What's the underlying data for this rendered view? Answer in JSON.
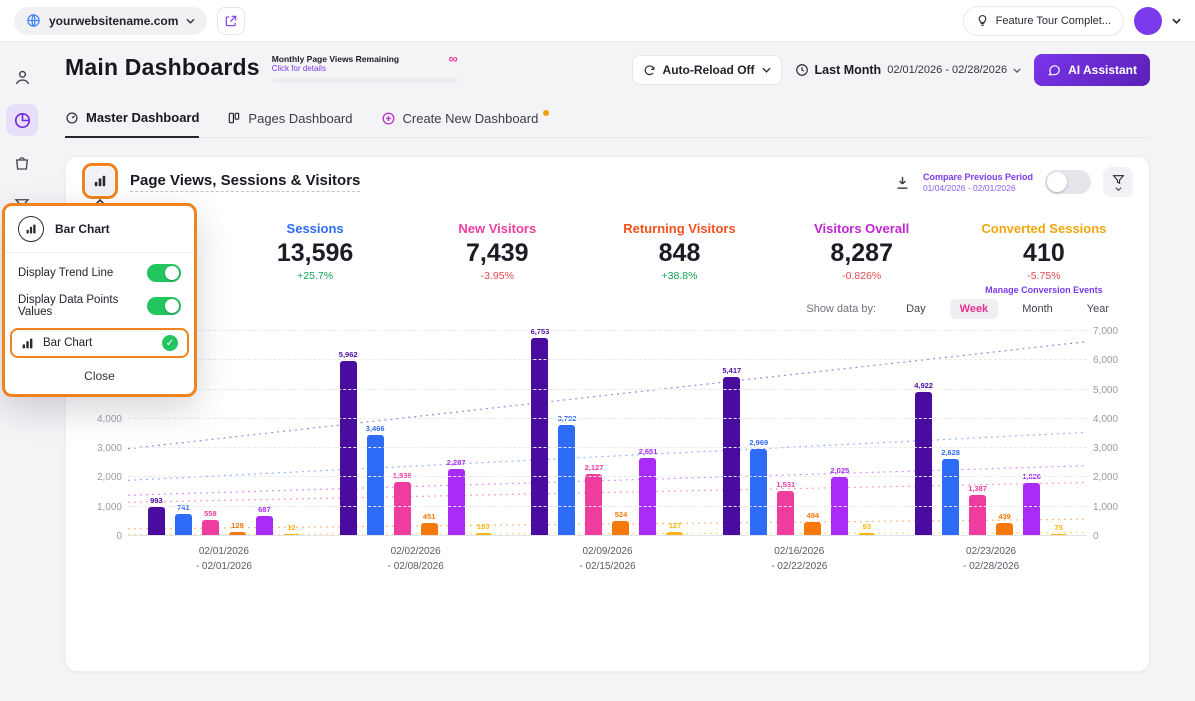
{
  "accent": {
    "purple": "#7C3AED",
    "highlight_orange": "#F0831E",
    "toggle_green": "#22C55E"
  },
  "topbar": {
    "website": "yourwebsitename.com",
    "feature_tour": "Feature Tour Complet..."
  },
  "header": {
    "title": "Main Dashboards",
    "quota_title": "Monthly Page Views Remaining",
    "quota_link": "Click for details",
    "quota_remaining": "∞",
    "auto_reload": "Auto-Reload Off",
    "period_label": "Last Month",
    "period_range": "02/01/2026 - 02/28/2026",
    "ai_assistant": "AI Assistant"
  },
  "tabs": [
    {
      "id": "master",
      "label": "Master Dashboard",
      "active": true,
      "notification_dot": false
    },
    {
      "id": "pages",
      "label": "Pages Dashboard",
      "active": false,
      "notification_dot": false
    },
    {
      "id": "create",
      "label": "Create New Dashboard",
      "active": false,
      "notification_dot": true
    }
  ],
  "sidebar": {
    "items": [
      {
        "name": "visitors",
        "active": false
      },
      {
        "name": "dashboards",
        "active": true
      },
      {
        "name": "ecommerce",
        "active": false
      },
      {
        "name": "behavior",
        "active": false
      },
      {
        "name": "communication",
        "active": false
      }
    ]
  },
  "widget": {
    "title": "Page Views, Sessions & Visitors",
    "compare_title": "Compare Previous Period",
    "compare_range": "01/04/2026 - 02/01/2026",
    "compare_enabled": false,
    "show_data_by_label": "Show data by:",
    "granularity_options": [
      "Day",
      "Week",
      "Month",
      "Year"
    ],
    "granularity_selected": "Week"
  },
  "stats": [
    {
      "label": "Sessions",
      "value": 13596,
      "delta": "+25.7%",
      "trend": "up",
      "color": "#2E6BF6"
    },
    {
      "label": "New Visitors",
      "value": 7439,
      "delta": "-3.95%",
      "trend": "down",
      "color": "#EE3D9F"
    },
    {
      "label": "Returning Visitors",
      "value": 848,
      "delta": "+38.8%",
      "trend": "up",
      "color": "#F4511E"
    },
    {
      "label": "Visitors Overall",
      "value": 8287,
      "delta": "-0.826%",
      "trend": "down",
      "color": "#C026D3"
    },
    {
      "label": "Converted Sessions",
      "value": 410,
      "delta": "-5.75%",
      "trend": "down",
      "color": "#F2A60D",
      "link": "Manage Conversion Events"
    }
  ],
  "chart_data": {
    "type": "bar",
    "title": "Page Views, Sessions & Visitors",
    "categories": [
      {
        "start": "02/01/2026",
        "end": "02/01/2026"
      },
      {
        "start": "02/02/2026",
        "end": "02/08/2026"
      },
      {
        "start": "02/09/2026",
        "end": "02/15/2026"
      },
      {
        "start": "02/16/2026",
        "end": "02/22/2026"
      },
      {
        "start": "02/23/2026",
        "end": "02/28/2026"
      }
    ],
    "series": [
      {
        "name": "Page Views",
        "color": "#4A0C9F",
        "values": [
          993,
          5962,
          6753,
          5417,
          4922
        ]
      },
      {
        "name": "Sessions",
        "color": "#2E6BF6",
        "values": [
          741,
          3466,
          3792,
          2969,
          2628
        ]
      },
      {
        "name": "New Visitors",
        "color": "#EE3D9F",
        "values": [
          558,
          1836,
          2127,
          1531,
          1387
        ]
      },
      {
        "name": "Returning Visitors",
        "color": "#F5790B",
        "values": [
          129,
          451,
          524,
          494,
          439
        ]
      },
      {
        "name": "Visitors Overall",
        "color": "#A92BF5",
        "values": [
          687,
          2287,
          2651,
          2025,
          1826
        ]
      },
      {
        "name": "Converted Sessions",
        "color": "#F6B80C",
        "values": [
          12,
          103,
          127,
          93,
          75
        ]
      }
    ],
    "ylim": [
      0,
      7000
    ],
    "y_tick_step": 1000,
    "grid": true,
    "legend": false,
    "trend_lines": true,
    "data_point_labels": true
  },
  "chart_menu": {
    "header_label": "Bar Chart",
    "toggles": [
      {
        "label": "Display Trend Line",
        "on": true
      },
      {
        "label": "Display Data Points Values",
        "on": true
      }
    ],
    "option_label": "Bar Chart",
    "option_selected": true,
    "close_label": "Close"
  }
}
